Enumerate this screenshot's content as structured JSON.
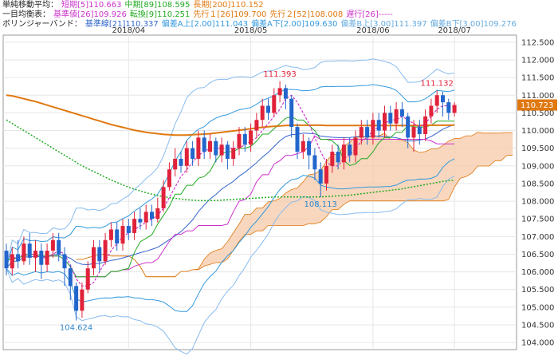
{
  "legend": {
    "row1": {
      "label": "単純移動平均：",
      "items": [
        {
          "text": "短期[5]110.663",
          "color": "#cc33cc"
        },
        {
          "text": "中期[89]108.595",
          "color": "#22aa22"
        },
        {
          "text": "長期[200]110.152",
          "color": "#e07810"
        }
      ]
    },
    "row2": {
      "label": "一目均衡表：",
      "items": [
        {
          "text": "基準値[26]109.926",
          "color": "#cc33cc"
        },
        {
          "text": "転換[9]110.251",
          "color": "#22aa22"
        },
        {
          "text": "先行１[26]109.700",
          "color": "#e07810"
        },
        {
          "text": "先行２[52]108.008",
          "color": "#e07810"
        },
        {
          "text": "遅行[26]-----",
          "color": "#cc33cc"
        }
      ]
    },
    "row3": {
      "label": "ボリンジャーバンド：",
      "items": [
        {
          "text": "基準線[21]110.337",
          "color": "#3366cc"
        },
        {
          "text": "偏差A上[2.00]111.043",
          "color": "#3399dd"
        },
        {
          "text": "偏差A下[2.00]109.630",
          "color": "#3399dd"
        },
        {
          "text": "偏差B上[3.00]111.397",
          "color": "#66aadd"
        },
        {
          "text": "偏差B下[3.00]109.276",
          "color": "#66aadd"
        }
      ]
    }
  },
  "chart_data": {
    "type": "candlestick",
    "x_labels": [
      "2018/04",
      "2018/05",
      "2018/06",
      "2018/07"
    ],
    "y_ticks": [
      104.0,
      104.5,
      105.0,
      105.5,
      106.0,
      106.5,
      107.0,
      107.5,
      108.0,
      108.5,
      109.0,
      109.5,
      110.0,
      110.5,
      111.0,
      111.5,
      112.0,
      112.5
    ],
    "ylim": [
      103.8,
      112.7
    ],
    "current_price": "110.723",
    "annotations": [
      {
        "text": "111.393",
        "color": "#e0223a"
      },
      {
        "text": "111.132",
        "color": "#e0223a"
      },
      {
        "text": "104.624",
        "color": "#3388cc"
      },
      {
        "text": "108.113",
        "color": "#3388cc"
      }
    ],
    "colors": {
      "up": "#e0223a",
      "down": "#2266cc",
      "sma_short": "#cc33cc",
      "sma_mid": "#22aa22",
      "sma_long": "#e07810",
      "kijun": "#cc33cc",
      "tenkan": "#22aa22",
      "span": "#e07810",
      "bb_mid": "#3366cc",
      "bb_2": "#3399dd",
      "bb_3": "#88bbee",
      "grid": "#e6e6e6",
      "current_box": "#e07810"
    },
    "candles": [
      [
        106.6,
        106.1,
        106.8,
        105.9
      ],
      [
        106.1,
        106.5,
        106.7,
        105.9
      ],
      [
        106.5,
        106.3,
        106.9,
        106.1
      ],
      [
        106.3,
        106.8,
        107.0,
        106.2
      ],
      [
        106.8,
        106.4,
        107.1,
        106.2
      ],
      [
        106.4,
        106.6,
        106.9,
        106.0
      ],
      [
        106.6,
        106.2,
        106.8,
        105.8
      ],
      [
        106.2,
        106.6,
        106.8,
        106.0
      ],
      [
        106.6,
        106.9,
        107.1,
        106.4
      ],
      [
        106.9,
        106.5,
        107.1,
        106.3
      ],
      [
        106.5,
        106.1,
        106.7,
        105.6
      ],
      [
        106.1,
        105.6,
        106.2,
        105.2
      ],
      [
        105.6,
        104.9,
        105.7,
        104.624
      ],
      [
        104.9,
        105.5,
        105.7,
        104.7
      ],
      [
        105.5,
        106.1,
        106.3,
        105.4
      ],
      [
        106.1,
        106.7,
        106.9,
        105.9
      ],
      [
        106.7,
        106.3,
        106.9,
        106.0
      ],
      [
        106.3,
        106.9,
        107.1,
        106.2
      ],
      [
        106.9,
        107.2,
        107.4,
        106.7
      ],
      [
        107.2,
        106.8,
        107.4,
        106.6
      ],
      [
        106.8,
        107.3,
        107.5,
        106.6
      ],
      [
        107.3,
        107.1,
        107.5,
        106.9
      ],
      [
        107.1,
        107.5,
        107.7,
        106.9
      ],
      [
        107.5,
        107.4,
        107.8,
        107.2
      ],
      [
        107.4,
        107.7,
        107.9,
        107.2
      ],
      [
        107.7,
        107.5,
        107.9,
        107.3
      ],
      [
        107.5,
        107.8,
        108.1,
        107.4
      ],
      [
        107.8,
        108.4,
        108.6,
        107.7
      ],
      [
        108.4,
        108.9,
        109.1,
        108.3
      ],
      [
        108.9,
        109.2,
        109.5,
        108.7
      ],
      [
        109.2,
        109.0,
        109.4,
        108.8
      ],
      [
        109.0,
        109.5,
        109.7,
        108.8
      ],
      [
        109.5,
        109.2,
        109.7,
        109.0
      ],
      [
        109.2,
        109.8,
        110.0,
        109.0
      ],
      [
        109.8,
        109.4,
        110.0,
        109.2
      ],
      [
        109.4,
        109.7,
        109.9,
        109.2
      ],
      [
        109.7,
        109.3,
        109.8,
        109.1
      ],
      [
        109.3,
        109.6,
        109.8,
        109.1
      ],
      [
        109.6,
        109.2,
        109.7,
        108.9
      ],
      [
        109.2,
        109.5,
        109.7,
        109.0
      ],
      [
        109.5,
        109.9,
        110.1,
        109.3
      ],
      [
        109.9,
        109.6,
        110.1,
        109.4
      ],
      [
        109.6,
        110.0,
        110.2,
        109.4
      ],
      [
        110.0,
        110.3,
        110.5,
        109.8
      ],
      [
        110.3,
        110.7,
        110.9,
        110.1
      ],
      [
        110.7,
        110.5,
        110.9,
        110.3
      ],
      [
        110.5,
        111.0,
        111.2,
        110.4
      ],
      [
        111.0,
        111.2,
        111.393,
        110.8
      ],
      [
        111.2,
        110.9,
        111.3,
        110.6
      ],
      [
        110.9,
        110.1,
        111.0,
        109.8
      ],
      [
        110.1,
        109.4,
        110.2,
        109.2
      ],
      [
        109.4,
        109.7,
        109.9,
        109.2
      ],
      [
        109.7,
        109.3,
        109.8,
        108.9
      ],
      [
        109.3,
        108.9,
        109.5,
        108.6
      ],
      [
        108.9,
        108.5,
        109.1,
        108.113
      ],
      [
        108.5,
        109.0,
        109.2,
        108.3
      ],
      [
        109.0,
        109.4,
        109.6,
        108.8
      ],
      [
        109.4,
        109.1,
        109.6,
        108.9
      ],
      [
        109.1,
        109.6,
        109.8,
        108.9
      ],
      [
        109.6,
        109.3,
        109.8,
        109.1
      ],
      [
        109.3,
        109.8,
        110.0,
        109.1
      ],
      [
        109.8,
        110.1,
        110.3,
        109.6
      ],
      [
        110.1,
        109.8,
        110.3,
        109.6
      ],
      [
        109.8,
        110.3,
        110.5,
        109.6
      ],
      [
        110.3,
        110.0,
        110.5,
        109.8
      ],
      [
        110.0,
        110.5,
        110.7,
        109.8
      ],
      [
        110.5,
        110.2,
        110.7,
        110.0
      ],
      [
        110.2,
        110.6,
        110.8,
        110.0
      ],
      [
        110.6,
        110.4,
        110.8,
        110.1
      ],
      [
        110.4,
        109.8,
        110.5,
        109.5
      ],
      [
        109.8,
        110.1,
        110.3,
        109.4
      ],
      [
        110.1,
        109.9,
        110.3,
        109.6
      ],
      [
        109.9,
        110.4,
        110.6,
        109.7
      ],
      [
        110.4,
        110.7,
        110.9,
        110.2
      ],
      [
        110.7,
        111.0,
        111.132,
        110.5
      ],
      [
        111.0,
        110.8,
        111.1,
        110.4
      ],
      [
        110.8,
        110.5,
        110.9,
        110.3
      ],
      [
        110.5,
        110.723,
        110.8,
        110.4
      ]
    ],
    "series": {
      "sma_long_y": [
        111.0,
        110.98,
        110.94,
        110.9,
        110.86,
        110.82,
        110.77,
        110.72,
        110.67,
        110.62,
        110.57,
        110.52,
        110.47,
        110.42,
        110.37,
        110.32,
        110.27,
        110.22,
        110.17,
        110.13,
        110.09,
        110.05,
        110.01,
        109.98,
        109.95,
        109.93,
        109.91,
        109.89,
        109.88,
        109.87,
        109.87,
        109.87,
        109.88,
        109.89,
        109.9,
        109.91,
        109.93,
        109.95,
        109.97,
        109.99,
        110.01,
        110.03,
        110.05,
        110.07,
        110.09,
        110.11,
        110.12,
        110.13,
        110.14,
        110.15,
        110.15,
        110.15,
        110.15,
        110.15,
        110.15,
        110.14,
        110.14,
        110.14,
        110.14,
        110.14,
        110.14,
        110.14,
        110.14,
        110.14,
        110.14,
        110.14,
        110.14,
        110.14,
        110.14,
        110.14,
        110.14,
        110.14,
        110.15,
        110.15,
        110.15,
        110.15,
        110.15,
        110.152
      ],
      "sma_mid_y": [
        110.3,
        110.2,
        110.1,
        110.0,
        109.9,
        109.8,
        109.7,
        109.6,
        109.5,
        109.4,
        109.3,
        109.2,
        109.1,
        109.0,
        108.92,
        108.84,
        108.76,
        108.68,
        108.6,
        108.53,
        108.46,
        108.4,
        108.34,
        108.29,
        108.24,
        108.2,
        108.16,
        108.13,
        108.1,
        108.08,
        108.06,
        108.04,
        108.03,
        108.02,
        108.02,
        108.02,
        108.02,
        108.03,
        108.04,
        108.05,
        108.06,
        108.07,
        108.08,
        108.09,
        108.1,
        108.11,
        108.12,
        108.12,
        108.12,
        108.12,
        108.12,
        108.12,
        108.12,
        108.12,
        108.12,
        108.13,
        108.14,
        108.15,
        108.16,
        108.17,
        108.19,
        108.21,
        108.23,
        108.25,
        108.27,
        108.29,
        108.31,
        108.33,
        108.35,
        108.38,
        108.41,
        108.44,
        108.47,
        108.5,
        108.53,
        108.56,
        108.58,
        108.595
      ],
      "sma_short_y": [
        106.5,
        106.4,
        106.4,
        106.5,
        106.5,
        106.5,
        106.4,
        106.4,
        106.5,
        106.6,
        106.5,
        106.2,
        105.8,
        105.6,
        105.6,
        105.7,
        106.0,
        106.3,
        106.6,
        106.8,
        107.0,
        107.1,
        107.2,
        107.3,
        107.4,
        107.5,
        107.6,
        107.8,
        108.1,
        108.4,
        108.7,
        108.9,
        109.1,
        109.3,
        109.4,
        109.5,
        109.5,
        109.5,
        109.5,
        109.5,
        109.5,
        109.6,
        109.7,
        109.8,
        110.0,
        110.2,
        110.4,
        110.6,
        110.9,
        111.0,
        110.8,
        110.5,
        110.2,
        109.8,
        109.4,
        109.1,
        109.0,
        109.0,
        109.2,
        109.3,
        109.5,
        109.7,
        109.8,
        110.0,
        110.1,
        110.2,
        110.3,
        110.3,
        110.4,
        110.3,
        110.2,
        110.1,
        110.2,
        110.4,
        110.6,
        110.7,
        110.7,
        110.663
      ]
    }
  }
}
